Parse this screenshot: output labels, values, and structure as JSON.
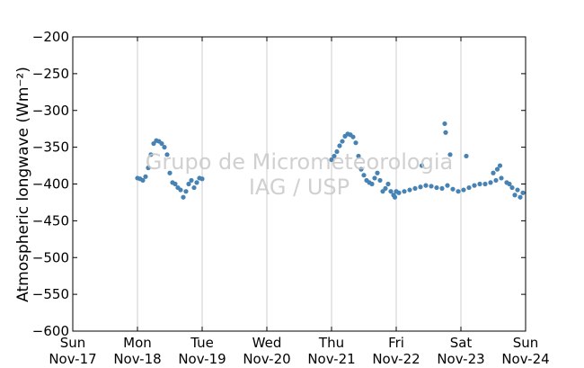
{
  "chart_data": {
    "type": "scatter",
    "ylabel": "Atmospheric longwave (Wm⁻²)",
    "ylim": [
      -600,
      -200
    ],
    "yticks": [
      -200,
      -250,
      -300,
      -350,
      -400,
      -450,
      -500,
      -550,
      -600
    ],
    "xlim": [
      "2013-11-17T00:00",
      "2013-11-24T00:00"
    ],
    "xticks": [
      {
        "day": "Sun",
        "date": "Nov-17"
      },
      {
        "day": "Mon",
        "date": "Nov-18"
      },
      {
        "day": "Tue",
        "date": "Nov-19"
      },
      {
        "day": "Wed",
        "date": "Nov-20"
      },
      {
        "day": "Thu",
        "date": "Nov-21"
      },
      {
        "day": "Fri",
        "date": "Nov-22"
      },
      {
        "day": "Sat",
        "date": "Nov-23"
      },
      {
        "day": "Sun",
        "date": "Nov-24"
      }
    ],
    "grid": "vertical",
    "watermark": [
      "Grupo de Micrometeorologia",
      "IAG / USP"
    ],
    "marker_color": "#4682b4",
    "series": [
      {
        "x": [
          "2013-11-18T00:00",
          "2013-11-18T01:00",
          "2013-11-18T02:00",
          "2013-11-18T03:00",
          "2013-11-18T04:00",
          "2013-11-18T05:00",
          "2013-11-18T06:00",
          "2013-11-18T07:00",
          "2013-11-18T08:00",
          "2013-11-18T09:00",
          "2013-11-18T10:00",
          "2013-11-18T11:00",
          "2013-11-18T12:00",
          "2013-11-18T13:00",
          "2013-11-18T14:00",
          "2013-11-18T15:00",
          "2013-11-18T16:00",
          "2013-11-18T17:00",
          "2013-11-18T18:00",
          "2013-11-18T19:00",
          "2013-11-18T20:00",
          "2013-11-18T21:00",
          "2013-11-18T22:00",
          "2013-11-18T23:00",
          "2013-11-19T00:00",
          "2013-11-21T00:00",
          "2013-11-21T01:00",
          "2013-11-21T02:00",
          "2013-11-21T03:00",
          "2013-11-21T04:00",
          "2013-11-21T05:00",
          "2013-11-21T06:00",
          "2013-11-21T07:00",
          "2013-11-21T08:00",
          "2013-11-21T09:00",
          "2013-11-21T10:00",
          "2013-11-21T11:00",
          "2013-11-21T12:00",
          "2013-11-21T13:00",
          "2013-11-21T14:00",
          "2013-11-21T15:00",
          "2013-11-21T16:00",
          "2013-11-21T17:00",
          "2013-11-21T18:00",
          "2013-11-21T19:00",
          "2013-11-21T20:00",
          "2013-11-21T21:00",
          "2013-11-21T22:00",
          "2013-11-21T23:00",
          "2013-11-22T01:00",
          "2013-11-22T03:00",
          "2013-11-22T05:00",
          "2013-11-22T07:00",
          "2013-11-22T09:00",
          "2013-11-22T11:00",
          "2013-11-22T13:00",
          "2013-11-22T15:00",
          "2013-11-22T17:00",
          "2013-11-22T19:00",
          "2013-11-22T21:00",
          "2013-11-22T23:00",
          "2013-11-23T01:00",
          "2013-11-23T03:00",
          "2013-11-23T05:00",
          "2013-11-23T07:00",
          "2013-11-23T09:00",
          "2013-11-23T11:00",
          "2013-11-23T13:00",
          "2013-11-23T15:00",
          "2013-11-23T17:00",
          "2013-11-23T19:00",
          "2013-11-23T21:00",
          "2013-11-23T23:00",
          "2013-11-23T12:00",
          "2013-11-23T13:30",
          "2013-11-23T14:30",
          "2013-11-22T09:30",
          "2013-11-22T18:00",
          "2013-11-22T18:20",
          "2013-11-22T20:00",
          "2013-11-23T02:00",
          "2013-11-23T18:00",
          "2013-11-23T20:00",
          "2013-11-23T22:00",
          "2013-11-21T23:30",
          "2013-11-22T00:00"
        ],
        "y": [
          -392,
          -393,
          -395,
          -390,
          -378,
          -360,
          -345,
          -341,
          -342,
          -345,
          -350,
          -360,
          -385,
          -398,
          -400,
          -405,
          -408,
          -418,
          -410,
          -400,
          -395,
          -405,
          -398,
          -392,
          -393,
          -367,
          -362,
          -356,
          -348,
          -342,
          -335,
          -332,
          -333,
          -336,
          -344,
          -362,
          -380,
          -388,
          -395,
          -398,
          -400,
          -392,
          -385,
          -395,
          -410,
          -406,
          -400,
          -410,
          -415,
          -412,
          -410,
          -408,
          -406,
          -404,
          -402,
          -403,
          -405,
          -406,
          -402,
          -407,
          -410,
          -408,
          -405,
          -402,
          -400,
          -400,
          -398,
          -395,
          -392,
          -398,
          -405,
          -408,
          -412,
          -385,
          -380,
          -375,
          -375,
          -318,
          -330,
          -360,
          -362,
          -400,
          -415,
          -418,
          -418,
          -410
        ]
      }
    ]
  }
}
